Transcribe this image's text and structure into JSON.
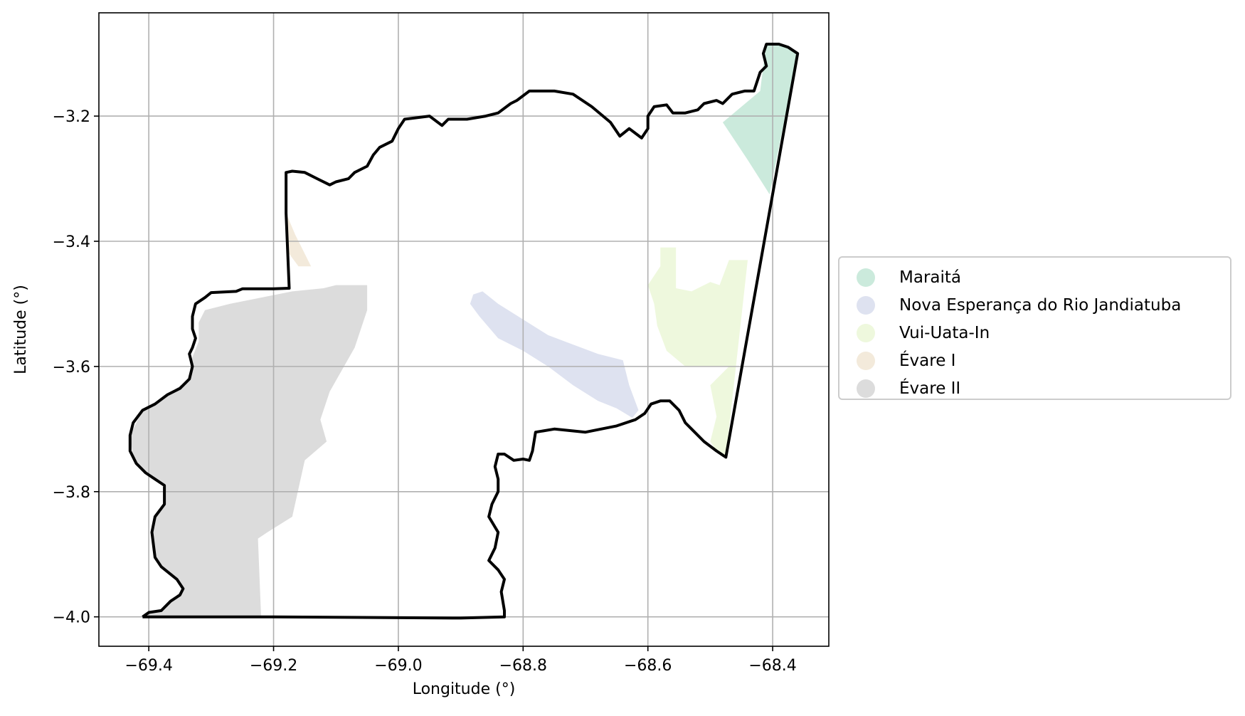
{
  "chart_data": {
    "type": "map",
    "xlabel": "Longitude (°)",
    "ylabel": "Latitude (°)",
    "xlim": [
      -69.48,
      -68.31
    ],
    "ylim": [
      -4.047,
      -3.035
    ],
    "xticks": [
      -69.4,
      -69.2,
      -69.0,
      -68.8,
      -68.6,
      -68.4
    ],
    "xtick_labels": [
      "−69.4",
      "−69.2",
      "−69.0",
      "−68.8",
      "−68.6",
      "−68.4"
    ],
    "yticks": [
      -3.2,
      -3.4,
      -3.6,
      -3.8,
      -4.0
    ],
    "ytick_labels": [
      "−3.2",
      "−3.4",
      "−3.6",
      "−3.8",
      "−4.0"
    ],
    "grid": true,
    "legend_position": "right-center",
    "boundary": {
      "color": "#000000",
      "points": [
        [
          -69.41,
          -4.0
        ],
        [
          -69.4,
          -3.993
        ],
        [
          -69.38,
          -3.99
        ],
        [
          -69.365,
          -3.975
        ],
        [
          -69.35,
          -3.965
        ],
        [
          -69.345,
          -3.955
        ],
        [
          -69.355,
          -3.94
        ],
        [
          -69.38,
          -3.92
        ],
        [
          -69.39,
          -3.905
        ],
        [
          -69.395,
          -3.865
        ],
        [
          -69.39,
          -3.84
        ],
        [
          -69.375,
          -3.82
        ],
        [
          -69.375,
          -3.79
        ],
        [
          -69.39,
          -3.78
        ],
        [
          -69.405,
          -3.77
        ],
        [
          -69.42,
          -3.755
        ],
        [
          -69.43,
          -3.735
        ],
        [
          -69.43,
          -3.71
        ],
        [
          -69.425,
          -3.69
        ],
        [
          -69.41,
          -3.67
        ],
        [
          -69.39,
          -3.66
        ],
        [
          -69.37,
          -3.645
        ],
        [
          -69.35,
          -3.635
        ],
        [
          -69.335,
          -3.62
        ],
        [
          -69.33,
          -3.6
        ],
        [
          -69.335,
          -3.58
        ],
        [
          -69.33,
          -3.57
        ],
        [
          -69.325,
          -3.555
        ],
        [
          -69.33,
          -3.54
        ],
        [
          -69.33,
          -3.52
        ],
        [
          -69.325,
          -3.5
        ],
        [
          -69.31,
          -3.49
        ],
        [
          -69.3,
          -3.482
        ],
        [
          -69.26,
          -3.48
        ],
        [
          -69.25,
          -3.476
        ],
        [
          -69.2,
          -3.476
        ],
        [
          -69.175,
          -3.475
        ],
        [
          -69.18,
          -3.355
        ],
        [
          -69.18,
          -3.29
        ],
        [
          -69.17,
          -3.288
        ],
        [
          -69.15,
          -3.29
        ],
        [
          -69.13,
          -3.3
        ],
        [
          -69.11,
          -3.31
        ],
        [
          -69.1,
          -3.305
        ],
        [
          -69.08,
          -3.3
        ],
        [
          -69.07,
          -3.29
        ],
        [
          -69.05,
          -3.28
        ],
        [
          -69.04,
          -3.262
        ],
        [
          -69.03,
          -3.25
        ],
        [
          -69.01,
          -3.24
        ],
        [
          -69.0,
          -3.22
        ],
        [
          -68.99,
          -3.205
        ],
        [
          -68.95,
          -3.2
        ],
        [
          -68.93,
          -3.215
        ],
        [
          -68.92,
          -3.205
        ],
        [
          -68.89,
          -3.205
        ],
        [
          -68.86,
          -3.2
        ],
        [
          -68.84,
          -3.195
        ],
        [
          -68.82,
          -3.18
        ],
        [
          -68.81,
          -3.175
        ],
        [
          -68.79,
          -3.16
        ],
        [
          -68.75,
          -3.16
        ],
        [
          -68.72,
          -3.165
        ],
        [
          -68.69,
          -3.185
        ],
        [
          -68.66,
          -3.21
        ],
        [
          -68.645,
          -3.232
        ],
        [
          -68.63,
          -3.22
        ],
        [
          -68.61,
          -3.235
        ],
        [
          -68.6,
          -3.22
        ],
        [
          -68.6,
          -3.2
        ],
        [
          -68.59,
          -3.185
        ],
        [
          -68.57,
          -3.182
        ],
        [
          -68.56,
          -3.195
        ],
        [
          -68.54,
          -3.195
        ],
        [
          -68.52,
          -3.19
        ],
        [
          -68.51,
          -3.18
        ],
        [
          -68.49,
          -3.175
        ],
        [
          -68.48,
          -3.18
        ],
        [
          -68.465,
          -3.165
        ],
        [
          -68.445,
          -3.16
        ],
        [
          -68.43,
          -3.16
        ],
        [
          -68.42,
          -3.13
        ],
        [
          -68.41,
          -3.12
        ],
        [
          -68.415,
          -3.1
        ],
        [
          -68.41,
          -3.085
        ],
        [
          -68.39,
          -3.085
        ],
        [
          -68.375,
          -3.09
        ],
        [
          -68.36,
          -3.1
        ],
        [
          -68.475,
          -3.745
        ],
        [
          -68.49,
          -3.735
        ],
        [
          -68.51,
          -3.72
        ],
        [
          -68.53,
          -3.7
        ],
        [
          -68.54,
          -3.69
        ],
        [
          -68.55,
          -3.67
        ],
        [
          -68.565,
          -3.655
        ],
        [
          -68.58,
          -3.655
        ],
        [
          -68.595,
          -3.66
        ],
        [
          -68.605,
          -3.675
        ],
        [
          -68.62,
          -3.685
        ],
        [
          -68.65,
          -3.695
        ],
        [
          -68.7,
          -3.705
        ],
        [
          -68.75,
          -3.7
        ],
        [
          -68.78,
          -3.705
        ],
        [
          -68.785,
          -3.735
        ],
        [
          -68.79,
          -3.75
        ],
        [
          -68.8,
          -3.748
        ],
        [
          -68.815,
          -3.75
        ],
        [
          -68.83,
          -3.74
        ],
        [
          -68.84,
          -3.74
        ],
        [
          -68.845,
          -3.76
        ],
        [
          -68.84,
          -3.78
        ],
        [
          -68.84,
          -3.8
        ],
        [
          -68.85,
          -3.82
        ],
        [
          -68.855,
          -3.84
        ],
        [
          -68.84,
          -3.865
        ],
        [
          -68.845,
          -3.89
        ],
        [
          -68.855,
          -3.91
        ],
        [
          -68.84,
          -3.925
        ],
        [
          -68.83,
          -3.94
        ],
        [
          -68.835,
          -3.96
        ],
        [
          -68.83,
          -3.99
        ],
        [
          -68.83,
          -4.0
        ],
        [
          -68.9,
          -4.002
        ],
        [
          -69.2,
          -4.0
        ],
        [
          -69.41,
          -4.0
        ]
      ]
    },
    "regions": [
      {
        "name": "Maraitá",
        "color": "#cbeadc",
        "polygon": [
          [
            -68.48,
            -3.21
          ],
          [
            -68.42,
            -3.16
          ],
          [
            -68.415,
            -3.12
          ],
          [
            -68.41,
            -3.085
          ],
          [
            -68.39,
            -3.085
          ],
          [
            -68.375,
            -3.09
          ],
          [
            -68.36,
            -3.1
          ],
          [
            -68.405,
            -3.325
          ],
          [
            -68.44,
            -3.27
          ]
        ]
      },
      {
        "name": "Nova Esperança do Rio Jandiatuba",
        "color": "#dee2f0",
        "polygon": [
          [
            -68.88,
            -3.485
          ],
          [
            -68.865,
            -3.48
          ],
          [
            -68.84,
            -3.5
          ],
          [
            -68.8,
            -3.525
          ],
          [
            -68.76,
            -3.55
          ],
          [
            -68.72,
            -3.565
          ],
          [
            -68.68,
            -3.58
          ],
          [
            -68.64,
            -3.59
          ],
          [
            -68.63,
            -3.63
          ],
          [
            -68.615,
            -3.67
          ],
          [
            -68.625,
            -3.682
          ],
          [
            -68.65,
            -3.667
          ],
          [
            -68.68,
            -3.655
          ],
          [
            -68.72,
            -3.63
          ],
          [
            -68.76,
            -3.6
          ],
          [
            -68.8,
            -3.575
          ],
          [
            -68.84,
            -3.555
          ],
          [
            -68.87,
            -3.52
          ],
          [
            -68.885,
            -3.5
          ]
        ]
      },
      {
        "name": "Vui-Uata-In",
        "color": "#eef8dd",
        "polygon": [
          [
            -68.58,
            -3.41
          ],
          [
            -68.555,
            -3.41
          ],
          [
            -68.555,
            -3.475
          ],
          [
            -68.53,
            -3.48
          ],
          [
            -68.5,
            -3.465
          ],
          [
            -68.485,
            -3.47
          ],
          [
            -68.47,
            -3.43
          ],
          [
            -68.44,
            -3.43
          ],
          [
            -68.475,
            -3.745
          ],
          [
            -68.49,
            -3.735
          ],
          [
            -68.5,
            -3.72
          ],
          [
            -68.49,
            -3.68
          ],
          [
            -68.5,
            -3.63
          ],
          [
            -68.47,
            -3.6
          ],
          [
            -68.52,
            -3.6
          ],
          [
            -68.54,
            -3.6
          ],
          [
            -68.57,
            -3.575
          ],
          [
            -68.585,
            -3.535
          ],
          [
            -68.59,
            -3.5
          ],
          [
            -68.6,
            -3.47
          ],
          [
            -68.58,
            -3.44
          ]
        ]
      },
      {
        "name": "Évare I",
        "color": "#f3eadb",
        "polygon": [
          [
            -69.18,
            -3.355
          ],
          [
            -69.165,
            -3.39
          ],
          [
            -69.155,
            -3.41
          ],
          [
            -69.14,
            -3.44
          ],
          [
            -69.16,
            -3.44
          ],
          [
            -69.175,
            -3.42
          ]
        ]
      },
      {
        "name": "Évare II",
        "color": "#dcdcdc",
        "polygon": [
          [
            -69.41,
            -4.0
          ],
          [
            -69.4,
            -3.993
          ],
          [
            -69.38,
            -3.99
          ],
          [
            -69.365,
            -3.975
          ],
          [
            -69.345,
            -3.955
          ],
          [
            -69.355,
            -3.94
          ],
          [
            -69.38,
            -3.92
          ],
          [
            -69.39,
            -3.905
          ],
          [
            -69.395,
            -3.865
          ],
          [
            -69.39,
            -3.84
          ],
          [
            -69.375,
            -3.82
          ],
          [
            -69.375,
            -3.79
          ],
          [
            -69.405,
            -3.77
          ],
          [
            -69.425,
            -3.745
          ],
          [
            -69.43,
            -3.71
          ],
          [
            -69.41,
            -3.67
          ],
          [
            -69.37,
            -3.645
          ],
          [
            -69.335,
            -3.62
          ],
          [
            -69.33,
            -3.585
          ],
          [
            -69.32,
            -3.56
          ],
          [
            -69.32,
            -3.53
          ],
          [
            -69.31,
            -3.51
          ],
          [
            -69.27,
            -3.5
          ],
          [
            -69.22,
            -3.49
          ],
          [
            -69.17,
            -3.48
          ],
          [
            -69.12,
            -3.475
          ],
          [
            -69.1,
            -3.47
          ],
          [
            -69.05,
            -3.47
          ],
          [
            -69.05,
            -3.51
          ],
          [
            -69.07,
            -3.57
          ],
          [
            -69.11,
            -3.64
          ],
          [
            -69.125,
            -3.685
          ],
          [
            -69.115,
            -3.72
          ],
          [
            -69.15,
            -3.75
          ],
          [
            -69.16,
            -3.795
          ],
          [
            -69.17,
            -3.84
          ],
          [
            -69.21,
            -3.865
          ],
          [
            -69.225,
            -3.875
          ],
          [
            -69.22,
            -4.0
          ]
        ]
      }
    ]
  }
}
